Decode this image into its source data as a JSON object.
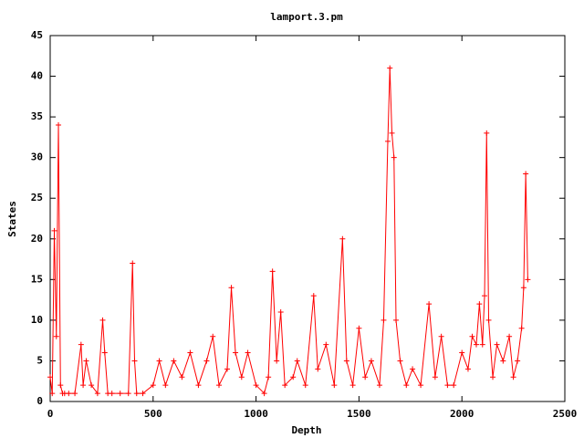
{
  "chart_data": {
    "type": "line",
    "title": "lamport.3.pm",
    "x_label": "Depth",
    "y_label": "States",
    "x": [
      0,
      10,
      20,
      30,
      40,
      50,
      60,
      70,
      90,
      120,
      150,
      160,
      175,
      200,
      230,
      255,
      265,
      280,
      300,
      340,
      380,
      400,
      410,
      420,
      450,
      500,
      530,
      560,
      600,
      640,
      680,
      720,
      760,
      790,
      820,
      860,
      880,
      900,
      930,
      960,
      1000,
      1040,
      1060,
      1080,
      1100,
      1120,
      1140,
      1180,
      1200,
      1240,
      1280,
      1300,
      1340,
      1380,
      1420,
      1440,
      1470,
      1500,
      1530,
      1560,
      1600,
      1620,
      1640,
      1650,
      1660,
      1670,
      1680,
      1700,
      1730,
      1760,
      1800,
      1840,
      1870,
      1900,
      1930,
      1960,
      2000,
      2030,
      2050,
      2070,
      2085,
      2100,
      2110,
      2120,
      2130,
      2150,
      2170,
      2200,
      2230,
      2250,
      2270,
      2290,
      2300,
      2310,
      2320
    ],
    "values": [
      3,
      1,
      21,
      8,
      34,
      2,
      1,
      1,
      1,
      1,
      7,
      2,
      5,
      2,
      1,
      10,
      6,
      1,
      1,
      1,
      1,
      17,
      5,
      1,
      1,
      2,
      5,
      2,
      5,
      3,
      6,
      2,
      5,
      8,
      2,
      4,
      14,
      6,
      3,
      6,
      2,
      1,
      3,
      16,
      5,
      11,
      2,
      3,
      5,
      2,
      13,
      4,
      7,
      2,
      20,
      5,
      2,
      9,
      3,
      5,
      2,
      10,
      32,
      41,
      33,
      30,
      10,
      5,
      2,
      4,
      2,
      12,
      3,
      8,
      2,
      2,
      6,
      4,
      8,
      7,
      12,
      7,
      13,
      33,
      10,
      3,
      7,
      5,
      8,
      3,
      5,
      9,
      14,
      28,
      15
    ],
    "color": "#ff0000",
    "xlim": [
      0,
      2500
    ],
    "xticks": [
      0,
      500,
      1000,
      1500,
      2000,
      2500
    ],
    "ylim": [
      0,
      45
    ],
    "yticks": [
      0,
      5,
      10,
      15,
      20,
      25,
      30,
      35,
      40,
      45
    ]
  }
}
